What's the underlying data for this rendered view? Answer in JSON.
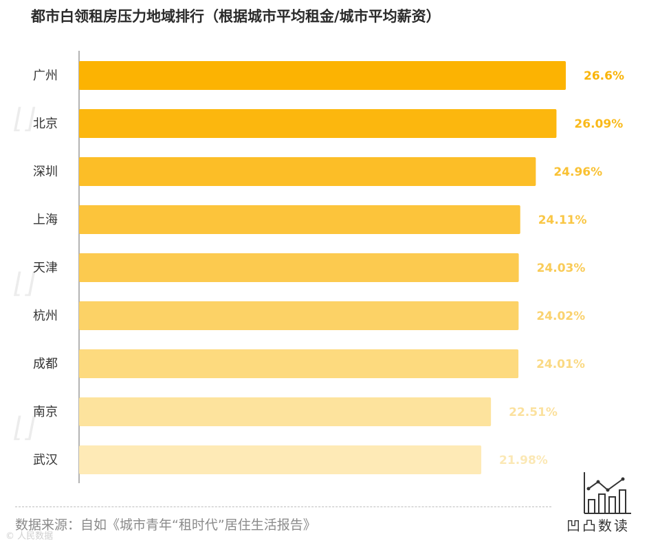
{
  "title": "都市白领租房压力地域排行（根据城市平均租金/城市平均薪资）",
  "source": "数据来源：自如《城市青年“租时代”居住生活报告》",
  "watermark": "© 人民数据",
  "logo_text": "凹凸数读",
  "chart_data": {
    "type": "bar",
    "orientation": "horizontal",
    "title": "都市白领租房压力地域排行（根据城市平均租金/城市平均薪资）",
    "categories": [
      "广州",
      "北京",
      "深圳",
      "上海",
      "天津",
      "杭州",
      "成都",
      "南京",
      "武汉"
    ],
    "values": [
      26.6,
      26.09,
      24.96,
      24.11,
      24.03,
      24.02,
      24.01,
      22.51,
      21.98
    ],
    "value_labels": [
      "26.6%",
      "26.09%",
      "24.96%",
      "24.11%",
      "24.03%",
      "24.02%",
      "24.01%",
      "22.51%",
      "21.98%"
    ],
    "colors": [
      "#FCB302",
      "#FCB70E",
      "#FCBE27",
      "#FCC43B",
      "#FCCA4F",
      "#FCD266",
      "#FDDA7E",
      "#FDE39D",
      "#FEEAB6"
    ],
    "label_colors": [
      "#F9B409",
      "#F9B91A",
      "#F9C133",
      "#F9C644",
      "#F9CB57",
      "#FAD26E",
      "#FAD983",
      "#FBE19E",
      "#FBE8B5"
    ],
    "xlim": [
      0,
      26.6
    ],
    "grid": false,
    "legend": "none"
  }
}
